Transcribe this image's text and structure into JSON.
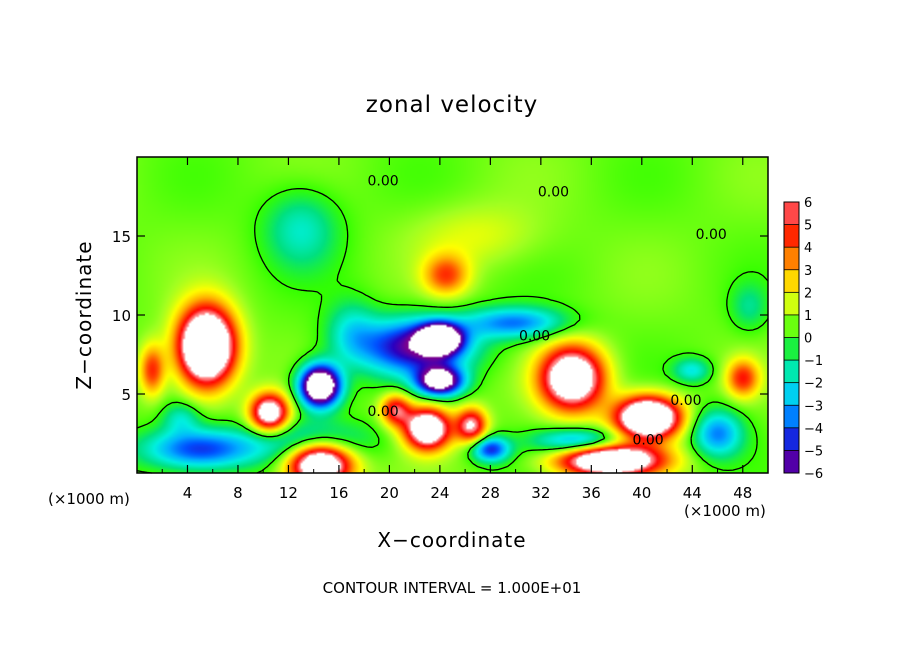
{
  "chart_data": {
    "type": "heatmap",
    "title": "zonal velocity",
    "xlabel": "X−coordinate",
    "ylabel": "Z−coordinate",
    "x_unit": "(×1000 m)",
    "x_unit_right": "(×1000 m)",
    "footer": "CONTOUR INTERVAL = 1.000E+01",
    "xlim": [
      0,
      50
    ],
    "ylim": [
      0,
      20
    ],
    "x_ticks": [
      4,
      8,
      12,
      16,
      20,
      24,
      28,
      32,
      36,
      40,
      44,
      48
    ],
    "y_ticks": [
      5,
      10,
      15
    ],
    "colorbar": {
      "min": -6,
      "max": 6,
      "ticks": [
        6,
        5,
        4,
        3,
        2,
        1,
        0,
        -1,
        -2,
        -3,
        -4,
        -5,
        -6
      ],
      "tick_labels": [
        "6",
        "5",
        "4",
        "3",
        "2",
        "1",
        "0",
        "−1",
        "−2",
        "−3",
        "−4",
        "−5",
        "−6"
      ],
      "colors": [
        "#7a0090",
        "#2a00c0",
        "#0050ff",
        "#00b0ff",
        "#00f0e0",
        "#00e080",
        "#33ff00",
        "#a0ff20",
        "#ffff00",
        "#ffb000",
        "#ff5000",
        "#ff0000",
        "#ff9090"
      ]
    },
    "contour_labels": [
      {
        "text": "0.00",
        "x": 19.5,
        "y": 18.2
      },
      {
        "text": "0.00",
        "x": 33,
        "y": 17.5
      },
      {
        "text": "0.00",
        "x": 45.5,
        "y": 14.8
      },
      {
        "text": "0.00",
        "x": 31.5,
        "y": 8.4
      },
      {
        "text": "0.00",
        "x": 19.5,
        "y": 3.6
      },
      {
        "text": "0.00",
        "x": 43.5,
        "y": 4.3
      },
      {
        "text": "0.00",
        "x": 40.5,
        "y": 1.8
      }
    ],
    "anomalies": [
      {
        "x": 5.5,
        "z": 8.0,
        "sx": 2.2,
        "sz": 2.4,
        "v": 12
      },
      {
        "x": 10.5,
        "z": 3.8,
        "sx": 1.5,
        "sz": 1.2,
        "v": 8
      },
      {
        "x": 1.2,
        "z": 6.5,
        "sx": 1.0,
        "sz": 1.6,
        "v": 4
      },
      {
        "x": 14.5,
        "z": 5.5,
        "sx": 1.6,
        "sz": 1.3,
        "v": -11
      },
      {
        "x": 14.0,
        "z": 2.0,
        "sx": 4.5,
        "sz": 1.3,
        "v": -3
      },
      {
        "x": 5.0,
        "z": 1.5,
        "sx": 4.5,
        "sz": 1.3,
        "v": -5
      },
      {
        "x": 14.5,
        "z": 0.6,
        "sx": 2.5,
        "sz": 1.4,
        "v": 10
      },
      {
        "x": 22.0,
        "z": 8.0,
        "sx": 4.5,
        "sz": 1.8,
        "v": -6
      },
      {
        "x": 24.0,
        "z": 8.5,
        "sx": 1.6,
        "sz": 0.9,
        "v": -9
      },
      {
        "x": 24.0,
        "z": 5.8,
        "sx": 1.8,
        "sz": 0.9,
        "v": -8
      },
      {
        "x": 23.0,
        "z": 2.8,
        "sx": 1.8,
        "sz": 1.3,
        "v": 9
      },
      {
        "x": 26.5,
        "z": 3.0,
        "sx": 1.2,
        "sz": 1.1,
        "v": 6
      },
      {
        "x": 20.5,
        "z": 4.0,
        "sx": 1.2,
        "sz": 1.0,
        "v": 5
      },
      {
        "x": 28.0,
        "z": 1.5,
        "sx": 1.5,
        "sz": 0.8,
        "v": -5
      },
      {
        "x": 24.5,
        "z": 12.5,
        "sx": 1.8,
        "sz": 1.3,
        "v": 3.5
      },
      {
        "x": 27.0,
        "z": 15.0,
        "sx": 5.0,
        "sz": 2.0,
        "v": 1.2
      },
      {
        "x": 13.0,
        "z": 15.5,
        "sx": 3.0,
        "sz": 2.5,
        "v": -2.2
      },
      {
        "x": 30.0,
        "z": 9.5,
        "sx": 4.0,
        "sz": 1.0,
        "v": -4
      },
      {
        "x": 34.5,
        "z": 6.0,
        "sx": 2.5,
        "sz": 2.0,
        "v": 9
      },
      {
        "x": 40.5,
        "z": 3.5,
        "sx": 2.5,
        "sz": 1.3,
        "v": 11
      },
      {
        "x": 37.5,
        "z": 0.8,
        "sx": 4.0,
        "sz": 1.0,
        "v": 10
      },
      {
        "x": 46.0,
        "z": 2.5,
        "sx": 2.0,
        "sz": 1.5,
        "v": -4
      },
      {
        "x": 35.0,
        "z": 2.0,
        "sx": 3.5,
        "sz": 0.8,
        "v": -4
      },
      {
        "x": 48.0,
        "z": 6.0,
        "sx": 1.3,
        "sz": 1.2,
        "v": 4
      },
      {
        "x": 44.0,
        "z": 6.5,
        "sx": 1.5,
        "sz": 0.8,
        "v": -2.5
      },
      {
        "x": 17.0,
        "z": 9.0,
        "sx": 2.0,
        "sz": 2.0,
        "v": -2
      },
      {
        "x": 3.5,
        "z": 3.5,
        "sx": 1.5,
        "sz": 1.0,
        "v": -2
      },
      {
        "x": 48.5,
        "z": 10.5,
        "sx": 1.5,
        "sz": 1.5,
        "v": -1.5
      }
    ]
  }
}
